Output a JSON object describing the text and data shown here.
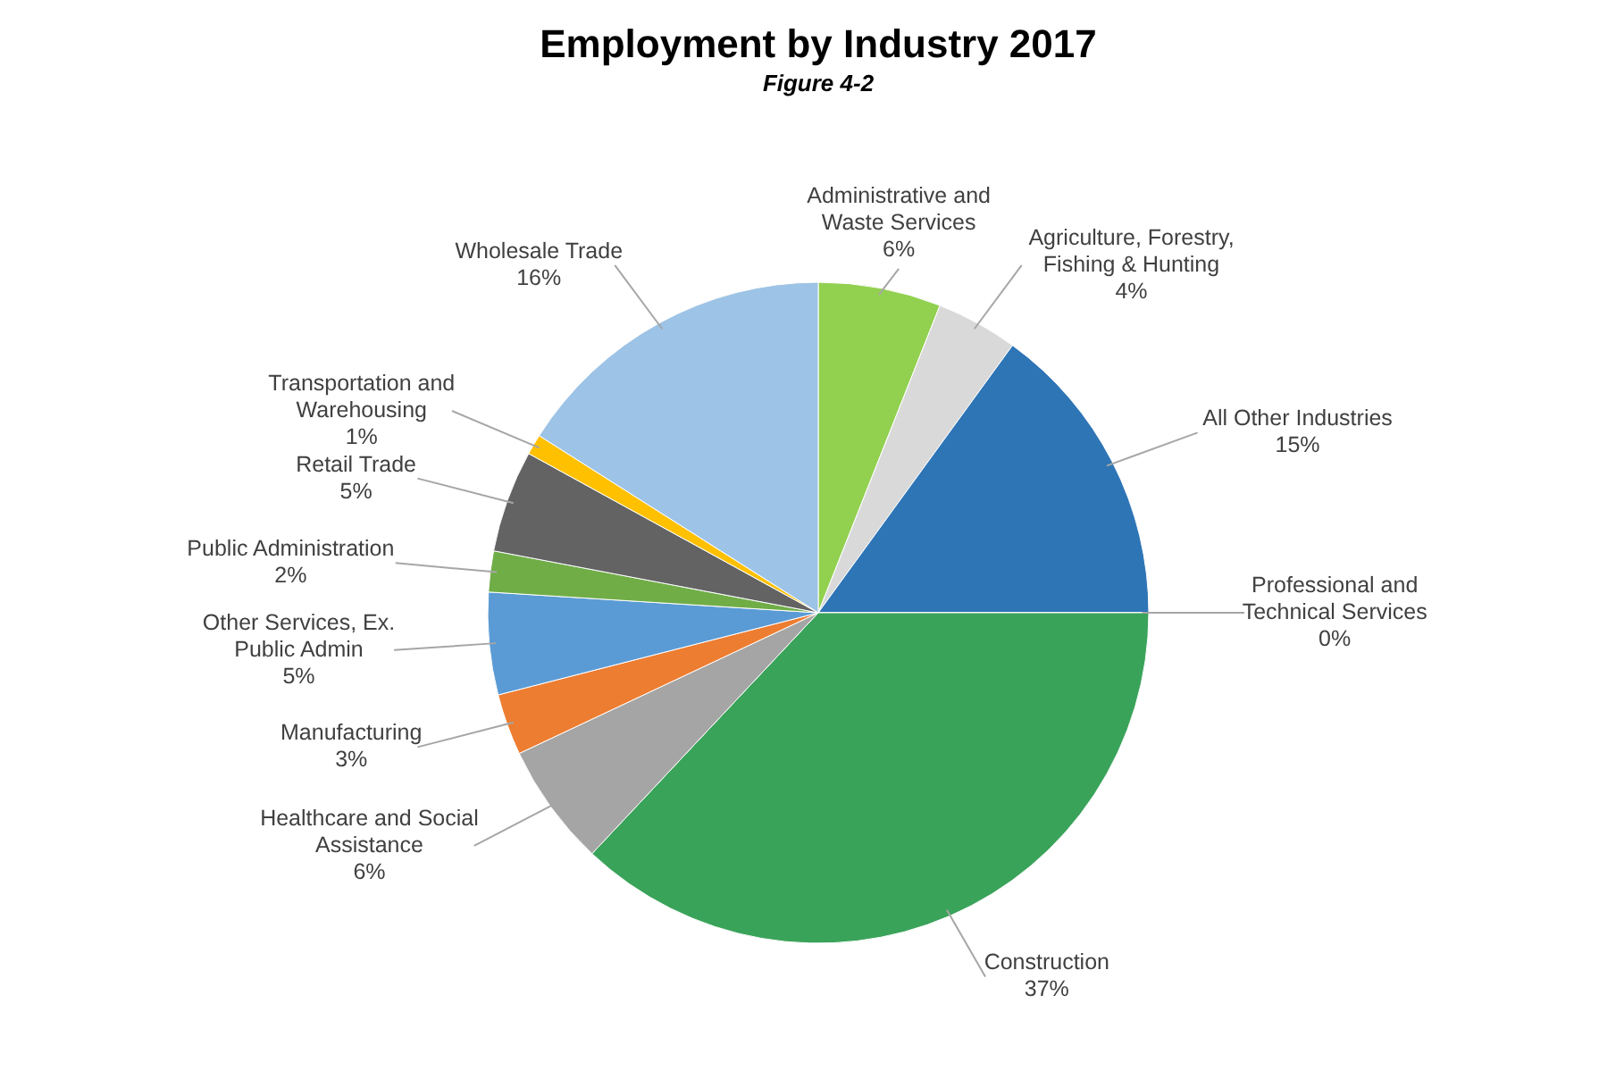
{
  "chart_data": {
    "type": "pie",
    "title": "Employment by Industry 2017",
    "subtitle": "Figure 4-2",
    "categories": [
      "Administrative and Waste Services",
      "Agriculture, Forestry, Fishing & Hunting",
      "All Other Industries",
      "Professional and Technical Services",
      "Construction",
      "Healthcare and Social Assistance",
      "Manufacturing",
      "Other Services, Ex. Public Admin",
      "Public Administration",
      "Retail Trade",
      "Transportation and Warehousing",
      "Wholesale Trade"
    ],
    "values": [
      6,
      4,
      15,
      0,
      37,
      6,
      3,
      5,
      2,
      5,
      1,
      16
    ],
    "value_labels": [
      "6%",
      "4%",
      "15%",
      "0%",
      "37%",
      "6%",
      "3%",
      "5%",
      "2%",
      "5%",
      "1%",
      "16%"
    ],
    "colors": [
      "#92d050",
      "#d9d9d9",
      "#2e75b6",
      "#4472c4",
      "#3aa35a",
      "#a5a5a5",
      "#ed7d31",
      "#5b9bd5",
      "#70ad47",
      "#636363",
      "#ffc000",
      "#9dc3e6"
    ]
  }
}
